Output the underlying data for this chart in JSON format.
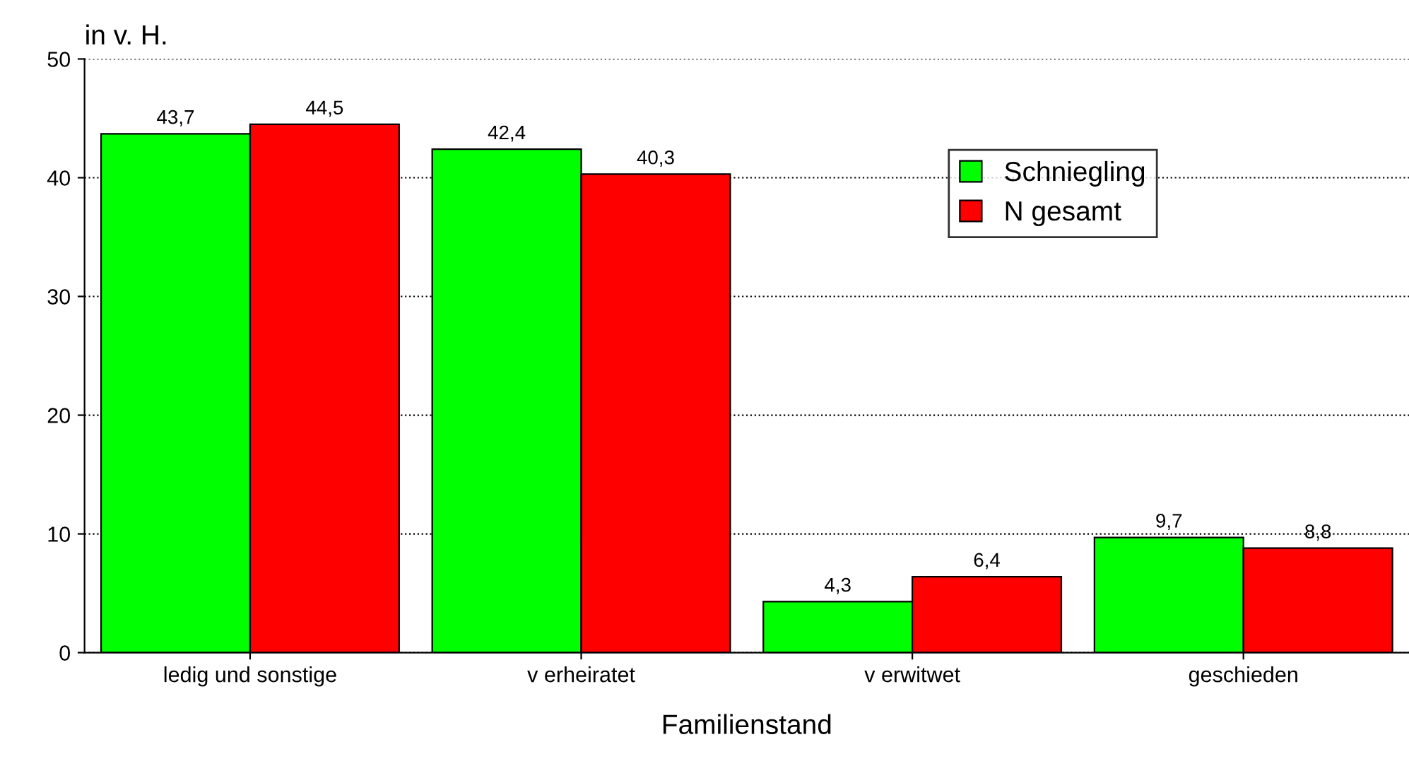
{
  "chart_data": {
    "type": "bar",
    "ylabel": "in v. H.",
    "xlabel": "Familienstand",
    "categories": [
      "ledig und sonstige",
      "v erheiratet",
      "v erwitwet",
      "geschieden"
    ],
    "series": [
      {
        "name": "Schniegling",
        "color": "#00ff00",
        "values": [
          43.7,
          42.4,
          4.3,
          9.7
        ],
        "value_labels": [
          "43,7",
          "42,4",
          "4,3",
          "9,7"
        ]
      },
      {
        "name": "N gesamt",
        "color": "#ff0000",
        "values": [
          44.5,
          40.3,
          6.4,
          8.8
        ],
        "value_labels": [
          "44,5",
          "40,3",
          "6,4",
          "8,8"
        ]
      }
    ],
    "ylim": [
      0,
      50
    ],
    "yticks": [
      0,
      10,
      20,
      30,
      40,
      50
    ],
    "grid": "y",
    "legend": "top right"
  }
}
